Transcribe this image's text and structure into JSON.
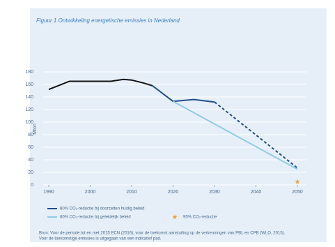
{
  "chart_data": {
    "type": "line",
    "title": "Figuur 1  Ontwikkeling energetische emissies in Nederland",
    "y_label": "Mton",
    "x": [
      1990,
      1995,
      2000,
      2005,
      2008,
      2010,
      2013,
      2015,
      2020,
      2025,
      2030,
      2050
    ],
    "series": [
      {
        "color": "#111111",
        "values": [
          152,
          165,
          165,
          165,
          168,
          167,
          162,
          158,
          null,
          null,
          null,
          null
        ]
      },
      {
        "name": "80% CO₂-reductie bij doorzetten huidig beleid",
        "color": "#1f4e8c",
        "dashed_after": 2030,
        "values": [
          null,
          null,
          null,
          null,
          null,
          null,
          null,
          158,
          133,
          136,
          132,
          27
        ]
      },
      {
        "name": "80% CO₂-reductie bij geleidelijk beleid",
        "color": "#8fcbe6",
        "values": [
          null,
          null,
          null,
          null,
          null,
          null,
          null,
          null,
          133,
          null,
          null,
          25
        ]
      },
      {
        "name": "95% CO₂-reductie",
        "color": "#f0a030",
        "marker": "star",
        "values": [
          null,
          null,
          null,
          null,
          null,
          null,
          null,
          null,
          null,
          null,
          null,
          5
        ]
      }
    ],
    "xlim": [
      1990,
      2050
    ],
    "xticks": [
      1990,
      2000,
      2010,
      2020,
      2030,
      2040,
      2050
    ],
    "ylim": [
      0,
      180
    ],
    "yticks": [
      0,
      20,
      40,
      60,
      80,
      100,
      120,
      140,
      160,
      180
    ],
    "grid": true,
    "source": [
      "Bron: Voor de periode tot en met 2015 ECN (2016); voor de toekomst aansluiting op de verkenningen van PBL en CPB (WLO, 2015).",
      "Voor de toekomstige emissies is uitgegaan van een indicatief pad."
    ]
  }
}
